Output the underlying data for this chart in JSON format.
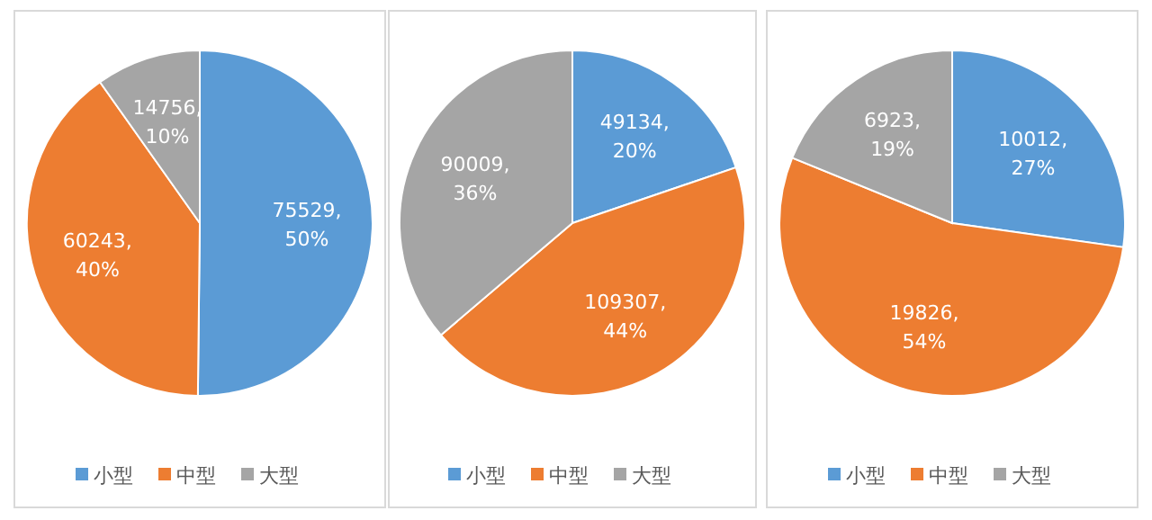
{
  "chart_data": [
    {
      "type": "pie",
      "categories": [
        "小型",
        "中型",
        "大型"
      ],
      "values": [
        75529,
        60243,
        14756
      ],
      "colors": [
        "#5b9bd5",
        "#ed7d31",
        "#a5a5a5"
      ],
      "value_labels": [
        "75529, 50%",
        "60243, 40%",
        "14756, 10%"
      ],
      "legend": "bottom"
    },
    {
      "type": "pie",
      "categories": [
        "小型",
        "中型",
        "大型"
      ],
      "values": [
        49134,
        109307,
        90009
      ],
      "colors": [
        "#5b9bd5",
        "#ed7d31",
        "#a5a5a5"
      ],
      "value_labels": [
        "49134, 20%",
        "109307, 44%",
        "90009, 36%"
      ],
      "legend": "bottom"
    },
    {
      "type": "pie",
      "categories": [
        "小型",
        "中型",
        "大型"
      ],
      "values": [
        10012,
        19826,
        6923
      ],
      "colors": [
        "#5b9bd5",
        "#ed7d31",
        "#a5a5a5"
      ],
      "value_labels": [
        "10012, 27%",
        "19826, 54%",
        "6923, 19%"
      ],
      "legend": "bottom"
    }
  ]
}
